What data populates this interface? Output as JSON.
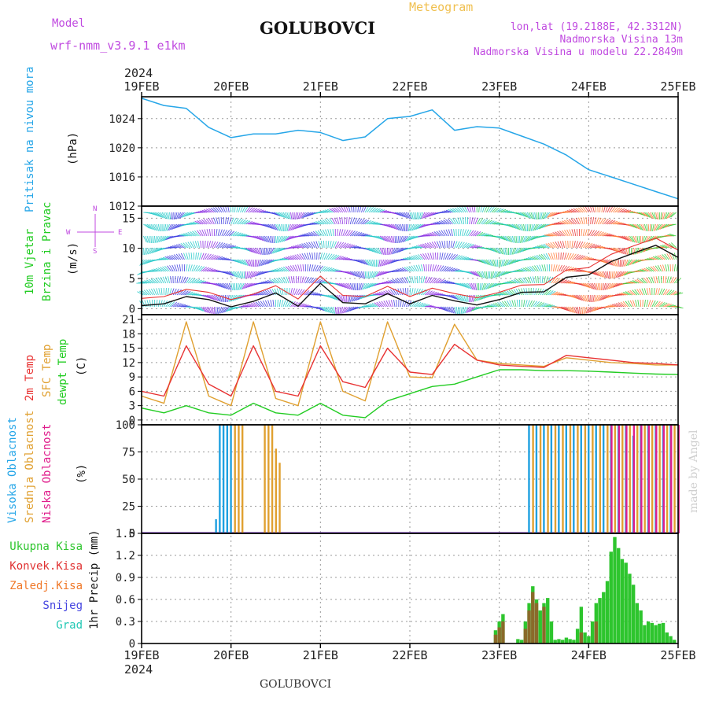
{
  "header": {
    "model_label": "Model",
    "model_name": "wrf-nmm_v3.9.1 e1km",
    "station": "GOLUBOVCI",
    "title": "Meteogram",
    "lonlat": "lon,lat (19.2188E, 42.3312N)",
    "altitude": "Nadmorska Visina 13m",
    "model_altitude": "Nadmorska Visina u modelu 22.2849m",
    "footer_station": "GOLUBOVCI",
    "credit": "made by Angel"
  },
  "colors": {
    "pressure": "#26a6e8",
    "temp2m": "#e83232",
    "sfc": "#e0a030",
    "dew": "#22cc22",
    "high": "#1ea0e0",
    "mid": "#e0a030",
    "low": "#e01e8c",
    "tot": "#2ec52e",
    "conv": "#e03232",
    "frz": "#f07828",
    "snow": "#4444e0",
    "grad": "#22c8b4"
  },
  "time_axis": {
    "year": "2024",
    "ticks": [
      "19FEB",
      "20FEB",
      "21FEB",
      "22FEB",
      "23FEB",
      "24FEB",
      "25FEB"
    ]
  },
  "panels": {
    "pressure": {
      "label1": "Pritisak na nivou mora",
      "unit": "(hPa)"
    },
    "wind": {
      "label1": "10m Vjetar",
      "label2": "Brzina i Pravac",
      "unit": "(m/s)",
      "compass_n": "N",
      "compass_s": "S",
      "compass_e": "E",
      "compass_w": "W"
    },
    "temp": {
      "label_2m": "2m Temp",
      "label_sfc": "SFC Temp",
      "label_dew": "dewpt Temp",
      "unit": "(C)"
    },
    "cloud": {
      "label_high": "Visoka Oblacnost",
      "label_mid": "Srednja Oblacnost",
      "label_low": "Niska Oblacnost",
      "unit": "(%)"
    },
    "precip": {
      "label_tot": "Ukupna Kisa",
      "label_conv": "Konvek.Kisa",
      "label_frz": "Zaledj.Kisa",
      "label_snow": "Snijeg",
      "label_grad": "Grad",
      "ylabel": "1hr Precip (mm)"
    }
  },
  "chart_data": [
    {
      "type": "line",
      "name": "pressure",
      "xlabel": "",
      "ylabel": "(hPa)",
      "x_range_hours": [
        0,
        144
      ],
      "ylim": [
        1012,
        1027
      ],
      "yticks": [
        1012,
        1016,
        1020,
        1024
      ],
      "x_hours": [
        0,
        6,
        12,
        18,
        24,
        30,
        36,
        42,
        48,
        54,
        60,
        66,
        72,
        78,
        84,
        90,
        96,
        102,
        108,
        114,
        120,
        126,
        132,
        138,
        144
      ],
      "series": [
        {
          "values": [
            1026.8,
            1025.8,
            1025.4,
            1022.8,
            1021.4,
            1021.9,
            1021.9,
            1022.4,
            1022.1,
            1021.0,
            1021.5,
            1024.0,
            1024.3,
            1025.2,
            1022.4,
            1022.9,
            1022.7,
            1021.6,
            1020.5,
            1019.0,
            1017.0,
            1016.0,
            1015.0,
            1014.0,
            1013.0
          ]
        }
      ]
    },
    {
      "type": "line",
      "name": "wind",
      "ylabel": "(m/s)",
      "x_range_hours": [
        0,
        144
      ],
      "ylim": [
        -1,
        17
      ],
      "yticks": [
        0,
        5,
        10,
        15
      ],
      "x_hours": [
        0,
        6,
        12,
        18,
        24,
        30,
        36,
        42,
        48,
        54,
        60,
        66,
        72,
        78,
        84,
        90,
        96,
        102,
        108,
        114,
        120,
        126,
        132,
        138,
        144
      ],
      "series": [
        {
          "values": [
            0.5,
            0.8,
            2.0,
            1.5,
            0.3,
            1.2,
            2.6,
            0.4,
            4.2,
            1.0,
            0.8,
            2.5,
            0.8,
            2.2,
            1.3,
            0.6,
            1.5,
            2.7,
            2.8,
            5.2,
            5.6,
            7.8,
            9.2,
            10.5,
            8.5
          ]
        }
      ]
    },
    {
      "type": "line",
      "name": "temperature",
      "ylabel": "(C)",
      "x_range_hours": [
        0,
        144
      ],
      "ylim": [
        -1,
        22
      ],
      "yticks": [
        0,
        3,
        6,
        9,
        12,
        15,
        18,
        21
      ],
      "x_hours": [
        0,
        6,
        12,
        18,
        24,
        30,
        36,
        42,
        48,
        54,
        60,
        66,
        72,
        78,
        84,
        90,
        96,
        102,
        108,
        114,
        120,
        126,
        132,
        138,
        144
      ],
      "series": [
        {
          "values": [
            6.0,
            5.0,
            15.5,
            7.5,
            5.0,
            15.5,
            6.0,
            5.0,
            15.5,
            8.0,
            6.8,
            15.0,
            10.0,
            9.5,
            15.8,
            12.5,
            11.5,
            11.2,
            11.0,
            13.5,
            13.0,
            12.5,
            12.0,
            11.8,
            11.5
          ]
        },
        {
          "values": [
            5.0,
            3.5,
            20.5,
            5.0,
            3.0,
            20.5,
            4.5,
            3.0,
            20.5,
            6.0,
            4.0,
            20.5,
            9.0,
            8.8,
            20.0,
            12.5,
            11.8,
            11.5,
            11.2,
            13.0,
            12.5,
            12.0,
            11.8,
            11.5,
            11.5
          ]
        },
        {
          "values": [
            2.5,
            1.5,
            3.0,
            1.5,
            1.0,
            3.5,
            1.5,
            1.0,
            3.5,
            1.0,
            0.5,
            4.0,
            5.5,
            7.0,
            7.5,
            9.0,
            10.5,
            10.5,
            10.3,
            10.3,
            10.2,
            10.0,
            9.8,
            9.6,
            9.5
          ]
        }
      ]
    },
    {
      "type": "bar",
      "name": "cloud",
      "ylabel": "(%)",
      "x_range_hours": [
        0,
        144
      ],
      "ylim": [
        0,
        100
      ],
      "yticks": [
        0,
        25,
        50,
        75,
        100
      ],
      "series": [
        {
          "hours": [
            20,
            21,
            22,
            23,
            24,
            104,
            106,
            108,
            110,
            112,
            114,
            116,
            118,
            120,
            122,
            124,
            126,
            128,
            130,
            132,
            134,
            136,
            138,
            140,
            142
          ],
          "values": [
            13,
            100,
            100,
            100,
            100,
            100,
            100,
            100,
            100,
            100,
            100,
            100,
            100,
            100,
            100,
            100,
            100,
            100,
            100,
            90,
            100,
            100,
            100,
            100,
            100
          ]
        },
        {
          "hours": [
            25,
            26,
            27,
            33,
            34,
            35,
            36,
            37,
            105,
            107,
            109,
            111,
            113,
            115,
            117,
            119,
            121,
            123,
            125,
            127,
            129,
            131,
            133,
            135,
            137,
            139,
            141,
            143
          ],
          "values": [
            100,
            100,
            100,
            100,
            100,
            100,
            78,
            65,
            100,
            100,
            100,
            100,
            100,
            100,
            100,
            100,
            100,
            100,
            100,
            100,
            100,
            100,
            100,
            100,
            100,
            100,
            100,
            100
          ]
        },
        {
          "hours": [
            126,
            128,
            130,
            132,
            134,
            136,
            138,
            140,
            142,
            144
          ],
          "values": [
            100,
            100,
            100,
            100,
            100,
            100,
            100,
            100,
            100,
            100
          ]
        }
      ]
    },
    {
      "type": "bar",
      "name": "precipitation",
      "ylabel": "1hr Precip (mm)",
      "x_range_hours": [
        0,
        144
      ],
      "ylim": [
        0,
        1.5
      ],
      "yticks": [
        0,
        0.3,
        0.6,
        0.9,
        1.2,
        1.5
      ],
      "series": [
        {
          "hours": [
            95,
            96,
            97,
            101,
            102,
            103,
            104,
            105,
            106,
            107,
            108,
            109,
            110,
            111,
            112,
            113,
            114,
            115,
            116,
            117,
            118,
            119,
            120,
            121,
            122,
            123,
            124,
            125,
            126,
            127,
            128,
            129,
            130,
            131,
            132,
            133,
            134,
            135,
            136,
            137,
            138,
            139,
            140,
            141,
            142,
            143
          ],
          "values": [
            0.18,
            0.3,
            0.4,
            0.06,
            0.05,
            0.3,
            0.55,
            0.78,
            0.6,
            0.45,
            0.55,
            0.62,
            0.3,
            0.05,
            0.06,
            0.05,
            0.08,
            0.06,
            0.05,
            0.2,
            0.5,
            0.15,
            0.1,
            0.3,
            0.55,
            0.62,
            0.7,
            0.85,
            1.25,
            1.45,
            1.3,
            1.15,
            1.1,
            0.95,
            0.8,
            0.55,
            0.45,
            0.25,
            0.3,
            0.28,
            0.25,
            0.27,
            0.28,
            0.15,
            0.1,
            0.05
          ]
        },
        {
          "hours": [
            95,
            96,
            97,
            103,
            104,
            105,
            106,
            108,
            118,
            122
          ],
          "values": [
            0.12,
            0.22,
            0.3,
            0.2,
            0.45,
            0.7,
            0.55,
            0.5,
            0.15,
            0.3
          ]
        }
      ]
    }
  ]
}
